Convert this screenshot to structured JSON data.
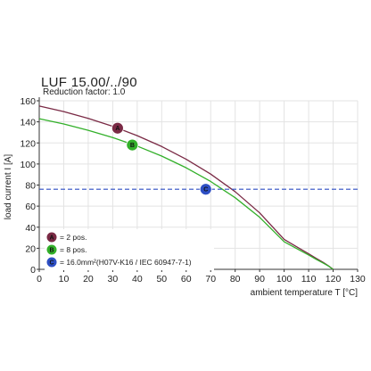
{
  "chart_data": {
    "type": "line",
    "title": "LUF 15.00/../90",
    "subtitle": "Reduction factor: 1.0",
    "xlabel": "ambient temperature T [°C]",
    "ylabel": "load current I [A]",
    "xlim": [
      0,
      130
    ],
    "ylim": [
      0,
      160
    ],
    "xticks": [
      "0",
      "10",
      "20",
      "30",
      "40",
      "50",
      "60",
      "70",
      "80",
      "90",
      "100",
      "110",
      "120",
      "130"
    ],
    "yticks": [
      "0",
      "20",
      "40",
      "60",
      "80",
      "100",
      "120",
      "140",
      "160"
    ],
    "grid": true,
    "series": [
      {
        "marker": "A",
        "legend": "= 2 pos.",
        "color": "#7a2a45",
        "style": "solid",
        "x": [
          0,
          10,
          20,
          30,
          40,
          50,
          60,
          70,
          80,
          90,
          100,
          105,
          110,
          113,
          116,
          118,
          119,
          120
        ],
        "y": [
          155,
          149.7,
          143.3,
          135.8,
          126.9,
          116.6,
          104.5,
          90.4,
          73.7,
          53.6,
          28.4,
          21.5,
          14.8,
          10.5,
          6.5,
          3.5,
          1.8,
          0
        ],
        "marker_point": [
          32,
          134
        ]
      },
      {
        "marker": "B",
        "legend": "= 8 pos.",
        "color": "#33b02a",
        "style": "solid",
        "x": [
          0,
          10,
          20,
          30,
          40,
          50,
          60,
          70,
          80,
          90,
          100,
          105,
          110,
          113,
          116,
          118,
          119,
          120
        ],
        "y": [
          143,
          138,
          132,
          125.1,
          117,
          107.5,
          96.4,
          83.4,
          68,
          49.4,
          26.2,
          19.8,
          13.6,
          9.6,
          5.9,
          3.2,
          1.6,
          0
        ],
        "marker_point": [
          38,
          118
        ]
      },
      {
        "marker": "C",
        "legend": "= 16.0mm²(H07V-K16 / IEC 60947-7-1)",
        "color": "#2e4fc4",
        "style": "dashed",
        "x": [
          0,
          130
        ],
        "y": [
          76,
          76
        ],
        "marker_point": [
          68,
          76
        ]
      }
    ],
    "legend_position": "bottom-left"
  }
}
